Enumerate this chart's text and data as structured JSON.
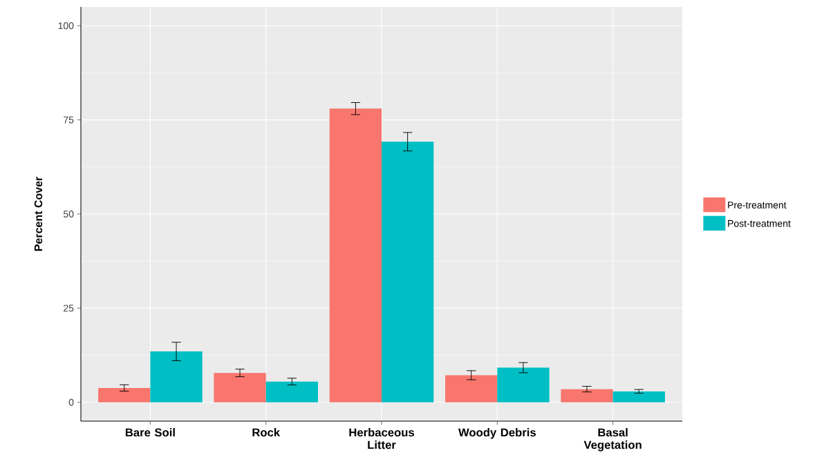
{
  "chart_data": {
    "type": "bar",
    "ylabel": "Percent Cover",
    "categories": [
      "Bare Soil",
      "Rock",
      "Herbaceous Litter",
      "Woody Debris",
      "Basal Vegetation"
    ],
    "series": [
      {
        "name": "Pre-treatment",
        "color": "#f8766d",
        "values": [
          3.8,
          7.8,
          78.0,
          7.2,
          3.5
        ],
        "errors": [
          0.85,
          1.0,
          1.6,
          1.2,
          0.75
        ]
      },
      {
        "name": "Post-treatment",
        "color": "#00bfc4",
        "values": [
          13.5,
          5.5,
          69.2,
          9.2,
          2.9
        ],
        "errors": [
          2.45,
          0.9,
          2.45,
          1.35,
          0.5
        ]
      }
    ],
    "ylim": [
      -5,
      105
    ],
    "yticks": [
      0,
      25,
      50,
      75,
      100
    ],
    "grid": true,
    "legend": "right"
  }
}
